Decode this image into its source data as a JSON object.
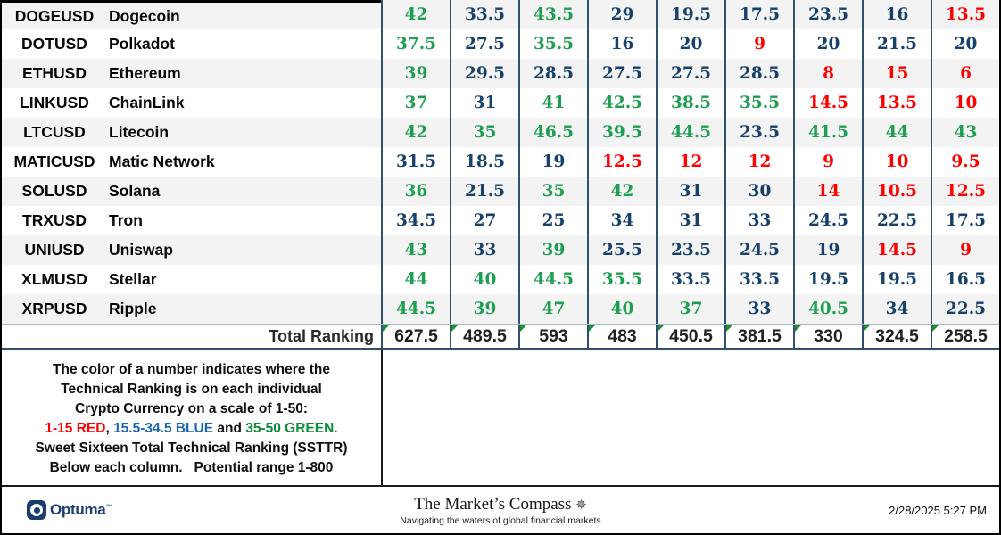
{
  "colors": {
    "green": "#1d9e50",
    "blue": "#17406a",
    "red": "#fe0000",
    "separator": "#2f506f",
    "stripe": "#f3f3f3",
    "brand_navy": "#1b3d6d",
    "triangle_green": "#1e8f2e",
    "legend_red": "#fe0000",
    "legend_blue": "#1a67b3",
    "legend_green": "#0e8c3a"
  },
  "table": {
    "color_rule": {
      "red_max": 15,
      "green_min": 35
    },
    "rows": [
      {
        "ticker": "DOGEUSD",
        "name": "Dogecoin",
        "values": [
          42,
          33.5,
          43.5,
          29,
          19.5,
          17.5,
          23.5,
          16,
          13.5
        ]
      },
      {
        "ticker": "DOTUSD",
        "name": "Polkadot",
        "values": [
          37.5,
          27.5,
          35.5,
          16,
          20,
          9,
          20,
          21.5,
          20
        ]
      },
      {
        "ticker": "ETHUSD",
        "name": "Ethereum",
        "values": [
          39,
          29.5,
          28.5,
          27.5,
          27.5,
          28.5,
          8,
          15,
          6
        ]
      },
      {
        "ticker": "LINKUSD",
        "name": "ChainLink",
        "values": [
          37,
          31,
          41,
          42.5,
          38.5,
          35.5,
          14.5,
          13.5,
          10
        ]
      },
      {
        "ticker": "LTCUSD",
        "name": "Litecoin",
        "values": [
          42,
          35,
          46.5,
          39.5,
          44.5,
          23.5,
          41.5,
          44,
          43
        ]
      },
      {
        "ticker": "MATICUSD",
        "name": "Matic Network",
        "values": [
          31.5,
          18.5,
          19,
          12.5,
          12,
          12,
          9,
          10,
          9.5
        ]
      },
      {
        "ticker": "SOLUSD",
        "name": "Solana",
        "values": [
          36,
          21.5,
          35,
          42,
          31,
          30,
          14,
          10.5,
          12.5
        ]
      },
      {
        "ticker": "TRXUSD",
        "name": "Tron",
        "values": [
          34.5,
          27,
          25,
          34,
          31,
          33,
          24.5,
          22.5,
          17.5
        ]
      },
      {
        "ticker": "UNIUSD",
        "name": "Uniswap",
        "values": [
          43,
          33,
          39,
          25.5,
          23.5,
          24.5,
          19,
          14.5,
          9
        ]
      },
      {
        "ticker": "XLMUSD",
        "name": "Stellar",
        "values": [
          44,
          40,
          44.5,
          35.5,
          33.5,
          33.5,
          19.5,
          19.5,
          16.5
        ]
      },
      {
        "ticker": "XRPUSD",
        "name": "Ripple",
        "values": [
          44.5,
          39,
          47,
          40,
          37,
          33,
          40.5,
          34,
          22.5
        ]
      }
    ],
    "total_label": "Total Ranking",
    "totals": [
      "627.5",
      "489.5",
      "593",
      "483",
      "450.5",
      "381.5",
      "330",
      "324.5",
      "258.5"
    ]
  },
  "note": {
    "lines": [
      "The color of a number indicates where the",
      "Technical Ranking is on each individual",
      "Crypto Currency on a scale of 1-50:"
    ],
    "legend_segments": [
      {
        "text": "1-15 RED",
        "color": "#fe0000"
      },
      {
        "text": ", ",
        "color": "#0f0f0f"
      },
      {
        "text": "15.5-34.5 BLUE",
        "color": "#1a67b3"
      },
      {
        "text": " and ",
        "color": "#0f0f0f"
      },
      {
        "text": "35-50 GREEN.",
        "color": "#0e8c3a"
      }
    ],
    "lines_after": [
      "Sweet Sixteen Total Technical Ranking (SSTTR)",
      "Below each column.   Potential range 1-800"
    ]
  },
  "footer": {
    "brand": "Optuma",
    "brand_tm": "™",
    "publication": "The Market’s Compass",
    "compass_icon": "✵",
    "tagline": "Navigating the waters of global financial markets",
    "timestamp": "2/28/2025 5:27 PM"
  }
}
